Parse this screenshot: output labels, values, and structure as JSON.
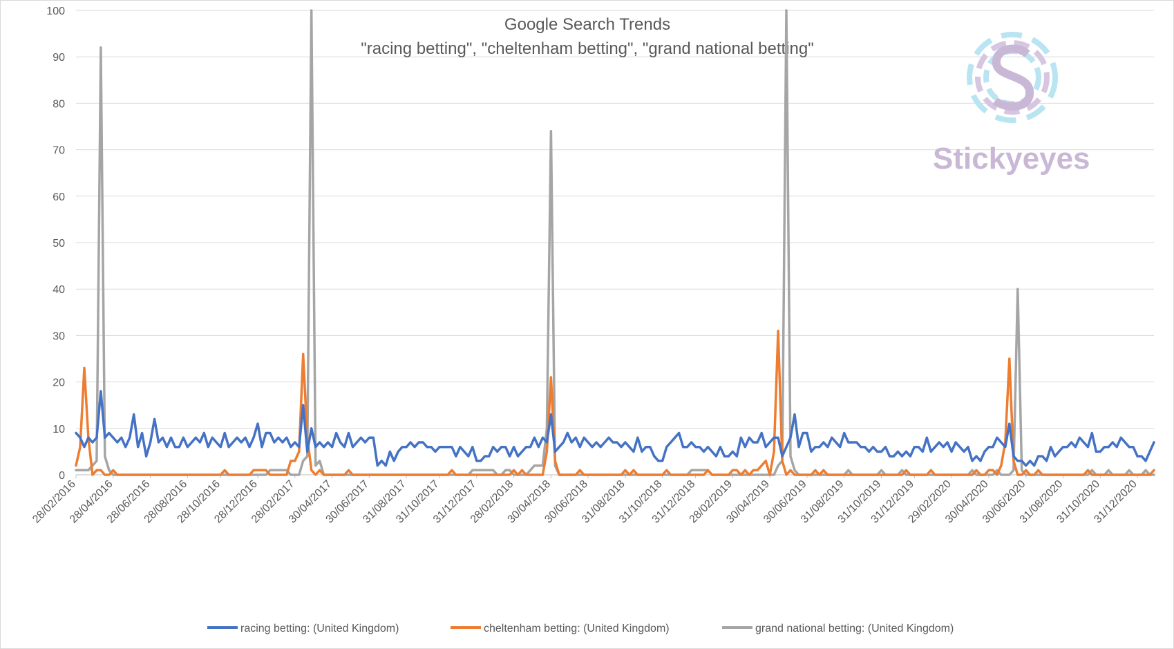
{
  "chart_data": {
    "type": "line",
    "title": "Google Search Trends",
    "subtitle": "\"racing betting\", \"cheltenham betting\", \"grand national betting\"",
    "xlabel": "",
    "ylabel": "",
    "ylim": [
      0,
      100
    ],
    "yticks": [
      0,
      10,
      20,
      30,
      40,
      50,
      60,
      70,
      80,
      90,
      100
    ],
    "grid": true,
    "legend_position": "bottom",
    "x_tick_labels": [
      "28/02/2016",
      "28/04/2016",
      "28/06/2016",
      "28/08/2016",
      "28/10/2016",
      "28/12/2016",
      "28/02/2017",
      "30/04/2017",
      "30/06/2017",
      "31/08/2017",
      "31/10/2017",
      "31/12/2017",
      "28/02/2018",
      "30/04/2018",
      "30/06/2018",
      "31/08/2018",
      "31/10/2018",
      "31/12/2018",
      "28/02/2019",
      "30/04/2019",
      "30/06/2019",
      "31/08/2019",
      "31/10/2019",
      "31/12/2019",
      "29/02/2020",
      "30/04/2020",
      "30/06/2020",
      "31/08/2020",
      "31/10/2020",
      "31/12/2020"
    ],
    "point_count": 262,
    "series": [
      {
        "name": "racing betting: (United Kingdom)",
        "color": "#4472c4",
        "peaks": [
          [
            0,
            9
          ],
          [
            5,
            8
          ],
          [
            6,
            18
          ],
          [
            7,
            8
          ],
          [
            8,
            9
          ],
          [
            13,
            8
          ],
          [
            14,
            13
          ],
          [
            15,
            6
          ],
          [
            16,
            9
          ],
          [
            17,
            4
          ],
          [
            19,
            12
          ],
          [
            24,
            6
          ],
          [
            31,
            9
          ],
          [
            43,
            8
          ],
          [
            44,
            11
          ],
          [
            47,
            9
          ],
          [
            54,
            6
          ],
          [
            55,
            15
          ],
          [
            56,
            5
          ],
          [
            57,
            10
          ],
          [
            58,
            6
          ],
          [
            62,
            6
          ],
          [
            63,
            9
          ],
          [
            72,
            8
          ],
          [
            73,
            2
          ],
          [
            83,
            7
          ],
          [
            86,
            6
          ],
          [
            94,
            5
          ],
          [
            98,
            3
          ],
          [
            103,
            6
          ],
          [
            107,
            4
          ],
          [
            110,
            6
          ],
          [
            115,
            13
          ],
          [
            116,
            5
          ],
          [
            119,
            9
          ],
          [
            126,
            7
          ],
          [
            138,
            6
          ],
          [
            141,
            3
          ],
          [
            145,
            8
          ],
          [
            148,
            6
          ],
          [
            160,
            4
          ],
          [
            161,
            8
          ],
          [
            165,
            7
          ],
          [
            170,
            8
          ],
          [
            171,
            4
          ],
          [
            174,
            13
          ],
          [
            177,
            9
          ],
          [
            178,
            5
          ],
          [
            181,
            7
          ],
          [
            187,
            7
          ],
          [
            191,
            6
          ],
          [
            195,
            5
          ],
          [
            200,
            4
          ],
          [
            204,
            6
          ],
          [
            208,
            6
          ],
          [
            214,
            6
          ],
          [
            219,
            3
          ],
          [
            221,
            6
          ],
          [
            226,
            11
          ],
          [
            227,
            4
          ],
          [
            230,
            2
          ],
          [
            240,
            6
          ],
          [
            246,
            9
          ],
          [
            247,
            5
          ],
          [
            254,
            7
          ],
          [
            256,
            6
          ],
          [
            259,
            3
          ],
          [
            261,
            7
          ],
          [
            262,
            2
          ]
        ]
      },
      {
        "name": "cheltenham betting: (United Kingdom)",
        "color": "#ed7d31",
        "peaks": [
          [
            0,
            2
          ],
          [
            1,
            6
          ],
          [
            2,
            23
          ],
          [
            3,
            8
          ],
          [
            4,
            0
          ],
          [
            5,
            1
          ],
          [
            7,
            0
          ],
          [
            9,
            1
          ],
          [
            10,
            0
          ],
          [
            35,
            0
          ],
          [
            36,
            1
          ],
          [
            37,
            0
          ],
          [
            42,
            0
          ],
          [
            43,
            1
          ],
          [
            46,
            1
          ],
          [
            47,
            0
          ],
          [
            51,
            0
          ],
          [
            52,
            3
          ],
          [
            53,
            3
          ],
          [
            54,
            5
          ],
          [
            55,
            26
          ],
          [
            56,
            8
          ],
          [
            57,
            1
          ],
          [
            58,
            0
          ],
          [
            59,
            1
          ],
          [
            60,
            0
          ],
          [
            65,
            0
          ],
          [
            66,
            1
          ],
          [
            67,
            0
          ],
          [
            90,
            0
          ],
          [
            91,
            1
          ],
          [
            92,
            0
          ],
          [
            105,
            0
          ],
          [
            106,
            1
          ],
          [
            107,
            0
          ],
          [
            108,
            1
          ],
          [
            109,
            0
          ],
          [
            113,
            0
          ],
          [
            114,
            5
          ],
          [
            115,
            21
          ],
          [
            116,
            3
          ],
          [
            117,
            0
          ],
          [
            121,
            0
          ],
          [
            122,
            1
          ],
          [
            123,
            0
          ],
          [
            124,
            0
          ],
          [
            132,
            0
          ],
          [
            133,
            1
          ],
          [
            134,
            0
          ],
          [
            135,
            1
          ],
          [
            136,
            0
          ],
          [
            142,
            0
          ],
          [
            143,
            1
          ],
          [
            144,
            0
          ],
          [
            152,
            0
          ],
          [
            153,
            1
          ],
          [
            154,
            0
          ],
          [
            158,
            0
          ],
          [
            159,
            1
          ],
          [
            160,
            1
          ],
          [
            161,
            0
          ],
          [
            162,
            1
          ],
          [
            163,
            0
          ],
          [
            164,
            1
          ],
          [
            165,
            1
          ],
          [
            166,
            2
          ],
          [
            167,
            3
          ],
          [
            168,
            0
          ],
          [
            169,
            5
          ],
          [
            170,
            31
          ],
          [
            171,
            3
          ],
          [
            172,
            0
          ],
          [
            173,
            1
          ],
          [
            174,
            0
          ],
          [
            178,
            0
          ],
          [
            179,
            1
          ],
          [
            180,
            0
          ],
          [
            181,
            1
          ],
          [
            182,
            0
          ],
          [
            200,
            0
          ],
          [
            201,
            1
          ],
          [
            202,
            0
          ],
          [
            206,
            0
          ],
          [
            207,
            1
          ],
          [
            208,
            0
          ],
          [
            217,
            0
          ],
          [
            218,
            1
          ],
          [
            219,
            0
          ],
          [
            221,
            1
          ],
          [
            222,
            1
          ],
          [
            223,
            0
          ],
          [
            224,
            2
          ],
          [
            225,
            7
          ],
          [
            226,
            25
          ],
          [
            227,
            3
          ],
          [
            228,
            0
          ],
          [
            229,
            0
          ],
          [
            230,
            1
          ],
          [
            231,
            0
          ],
          [
            233,
            1
          ],
          [
            234,
            0
          ],
          [
            235,
            0
          ],
          [
            244,
            0
          ],
          [
            245,
            1
          ],
          [
            246,
            0
          ],
          [
            261,
            1
          ],
          [
            262,
            1
          ]
        ]
      },
      {
        "name": "grand national betting: (United Kingdom)",
        "color": "#a5a5a5",
        "peaks": [
          [
            0,
            1
          ],
          [
            3,
            1
          ],
          [
            4,
            2
          ],
          [
            5,
            3
          ],
          [
            6,
            92
          ],
          [
            7,
            4
          ],
          [
            8,
            1
          ],
          [
            9,
            0
          ],
          [
            46,
            0
          ],
          [
            47,
            1
          ],
          [
            51,
            1
          ],
          [
            52,
            0
          ],
          [
            53,
            0
          ],
          [
            55,
            3
          ],
          [
            56,
            4
          ],
          [
            57,
            100
          ],
          [
            58,
            2
          ],
          [
            59,
            3
          ],
          [
            60,
            0
          ],
          [
            95,
            0
          ],
          [
            96,
            1
          ],
          [
            101,
            1
          ],
          [
            102,
            0
          ],
          [
            103,
            0
          ],
          [
            104,
            1
          ],
          [
            105,
            1
          ],
          [
            106,
            0
          ],
          [
            109,
            0
          ],
          [
            110,
            1
          ],
          [
            111,
            2
          ],
          [
            112,
            2
          ],
          [
            113,
            2
          ],
          [
            114,
            10
          ],
          [
            115,
            74
          ],
          [
            116,
            2
          ],
          [
            117,
            0
          ],
          [
            148,
            0
          ],
          [
            149,
            1
          ],
          [
            153,
            1
          ],
          [
            154,
            0
          ],
          [
            169,
            0
          ],
          [
            170,
            2
          ],
          [
            171,
            3
          ],
          [
            172,
            100
          ],
          [
            173,
            4
          ],
          [
            174,
            1
          ],
          [
            175,
            0
          ],
          [
            186,
            0
          ],
          [
            187,
            1
          ],
          [
            188,
            0
          ],
          [
            194,
            0
          ],
          [
            195,
            1
          ],
          [
            196,
            0
          ],
          [
            199,
            0
          ],
          [
            200,
            1
          ],
          [
            201,
            0
          ],
          [
            216,
            0
          ],
          [
            217,
            1
          ],
          [
            218,
            0
          ],
          [
            222,
            0
          ],
          [
            223,
            1
          ],
          [
            224,
            0
          ],
          [
            226,
            0
          ],
          [
            227,
            1
          ],
          [
            228,
            40
          ],
          [
            229,
            1
          ],
          [
            230,
            0
          ],
          [
            245,
            0
          ],
          [
            246,
            1
          ],
          [
            247,
            0
          ],
          [
            249,
            0
          ],
          [
            250,
            1
          ],
          [
            251,
            0
          ],
          [
            254,
            0
          ],
          [
            255,
            1
          ],
          [
            256,
            0
          ],
          [
            258,
            0
          ],
          [
            259,
            1
          ],
          [
            260,
            0
          ]
        ]
      }
    ],
    "watermark": "Stickyeyes"
  }
}
